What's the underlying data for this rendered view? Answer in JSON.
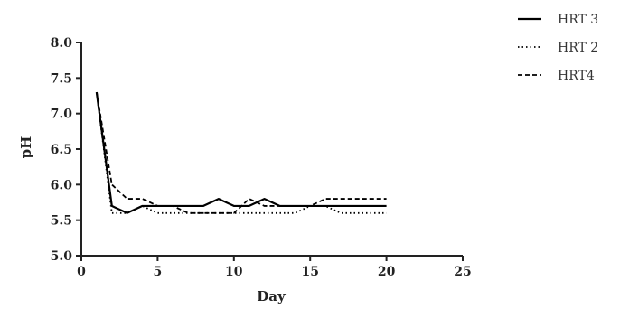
{
  "chart_data": {
    "type": "line",
    "title": "",
    "xlabel": "Day",
    "ylabel": "pH",
    "xlim": [
      0,
      25
    ],
    "ylim": [
      5.0,
      8.0
    ],
    "xticks": [
      "0",
      "5",
      "10",
      "15",
      "20",
      "25"
    ],
    "yticks": [
      "5.0",
      "5.5",
      "6.0",
      "6.5",
      "7.0",
      "7.5",
      "8.0"
    ],
    "grid": false,
    "legend_position": "top-right",
    "series": [
      {
        "name": "HRT 3",
        "style": "solid",
        "color": "#000000",
        "x": [
          1,
          2,
          3,
          4,
          5,
          6,
          7,
          8,
          9,
          10,
          11,
          12,
          13,
          14,
          15,
          16,
          17,
          18,
          19,
          20
        ],
        "y": [
          7.3,
          5.7,
          5.6,
          5.7,
          5.7,
          5.7,
          5.7,
          5.7,
          5.8,
          5.7,
          5.7,
          5.8,
          5.7,
          5.7,
          5.7,
          5.7,
          5.7,
          5.7,
          5.7,
          5.7
        ]
      },
      {
        "name": "HRT 2",
        "style": "dotted",
        "color": "#000000",
        "x": [
          1,
          2,
          3,
          4,
          5,
          6,
          7,
          8,
          9,
          10,
          11,
          12,
          13,
          14,
          15,
          16,
          17,
          18,
          19,
          20
        ],
        "y": [
          7.3,
          5.6,
          5.6,
          5.7,
          5.6,
          5.6,
          5.6,
          5.6,
          5.6,
          5.6,
          5.6,
          5.6,
          5.6,
          5.6,
          5.7,
          5.7,
          5.6,
          5.6,
          5.6,
          5.6
        ]
      },
      {
        "name": "HRT4",
        "style": "dashed",
        "color": "#000000",
        "x": [
          1,
          2,
          3,
          4,
          5,
          6,
          7,
          8,
          9,
          10,
          11,
          12,
          13,
          14,
          15,
          16,
          17,
          18,
          19,
          20
        ],
        "y": [
          7.3,
          6.0,
          5.8,
          5.8,
          5.7,
          5.7,
          5.6,
          5.6,
          5.6,
          5.6,
          5.8,
          5.7,
          5.7,
          5.7,
          5.7,
          5.8,
          5.8,
          5.8,
          5.8,
          5.8
        ]
      }
    ]
  }
}
